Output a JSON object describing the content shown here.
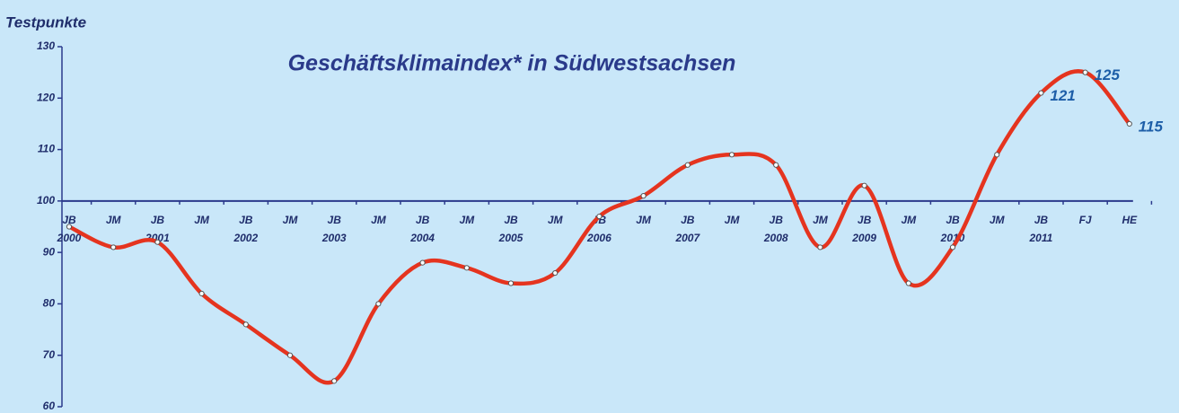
{
  "chart_data": {
    "type": "line",
    "title": "Geschäftsklimaindex* in Südwestsachsen",
    "y_label": "Testpunkte",
    "categories": [
      [
        "JB",
        "2000"
      ],
      [
        "JM"
      ],
      [
        "JB",
        "2001"
      ],
      [
        "JM"
      ],
      [
        "JB",
        "2002"
      ],
      [
        "JM"
      ],
      [
        "JB",
        "2003"
      ],
      [
        "JM"
      ],
      [
        "JB",
        "2004"
      ],
      [
        "JM"
      ],
      [
        "JB",
        "2005"
      ],
      [
        "JM"
      ],
      [
        "JB",
        "2006"
      ],
      [
        "JM"
      ],
      [
        "JB",
        "2007"
      ],
      [
        "JM"
      ],
      [
        "JB",
        "2008"
      ],
      [
        "JM"
      ],
      [
        "JB",
        "2009"
      ],
      [
        "JM"
      ],
      [
        "JB",
        "2010"
      ],
      [
        "JM"
      ],
      [
        "JB",
        "2011"
      ],
      [
        "FJ"
      ],
      [
        "HE"
      ]
    ],
    "series": [
      {
        "color": "#e5341f",
        "values": [
          95,
          91,
          92,
          82,
          76,
          70,
          65,
          80,
          88,
          87,
          84,
          86,
          97,
          101,
          107,
          109,
          107,
          91,
          103,
          84,
          91,
          109,
          121,
          125,
          115
        ],
        "value_labels": [
          null,
          null,
          null,
          null,
          null,
          null,
          null,
          null,
          null,
          null,
          null,
          null,
          null,
          null,
          null,
          null,
          null,
          null,
          null,
          null,
          null,
          null,
          "121",
          "125",
          "115"
        ]
      }
    ],
    "ylim": [
      60,
      130
    ],
    "yticks": [
      60,
      70,
      80,
      90,
      100,
      110,
      120,
      130
    ],
    "x_axis_crossing": 100
  }
}
